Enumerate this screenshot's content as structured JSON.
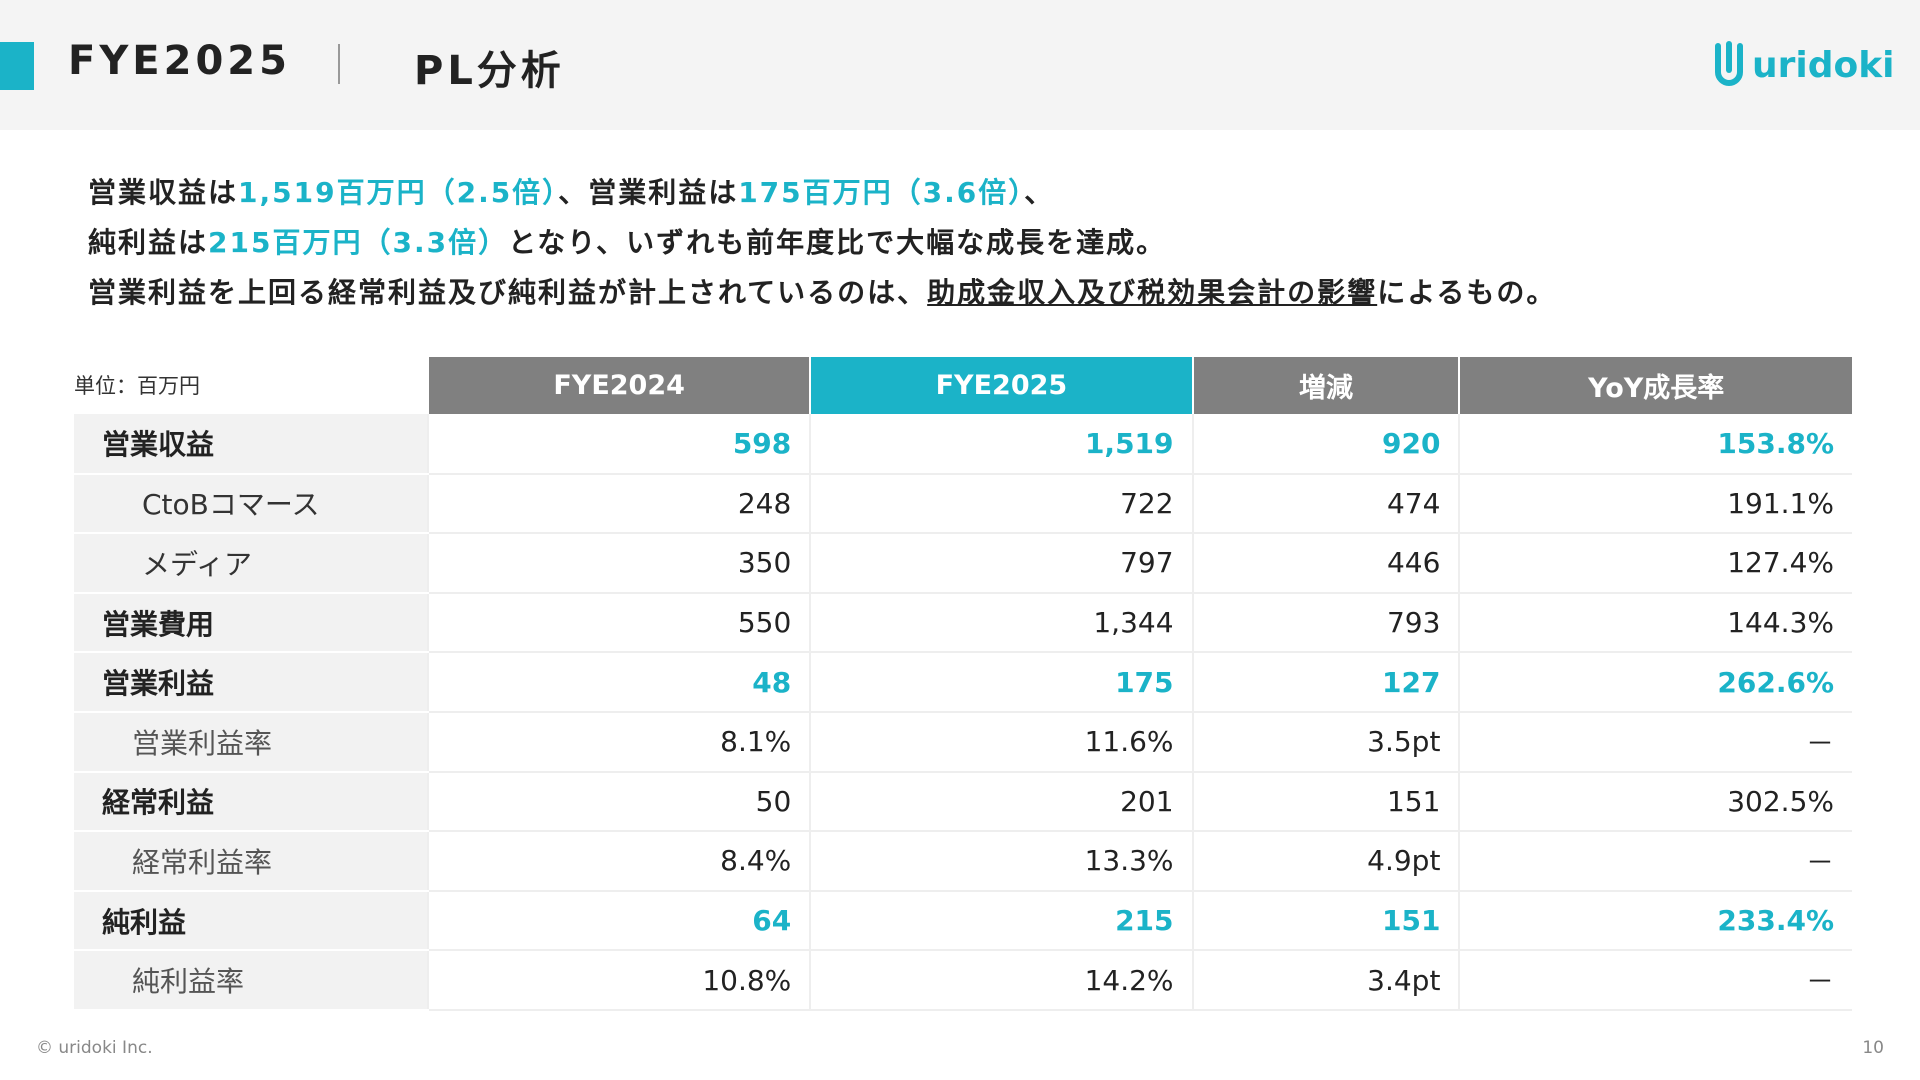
{
  "header": {
    "title": "FYE2025",
    "subtitle": "PL分析",
    "logo_text": "uridoki",
    "accent": "#1bb3c8"
  },
  "summary": {
    "l1": [
      "営業収益は",
      "1,519百万円（2.5倍）",
      "、営業利益は",
      "175百万円（3.6倍）",
      "、"
    ],
    "l2": [
      "純利益は",
      "215百万円（3.3倍）",
      "となり、いずれも前年度比で大幅な成長を達成。"
    ],
    "l3": [
      "営業利益を上回る経常利益及び純利益が計上されているのは、",
      "助成金収入及び税効果会計の影響",
      "によるもの。"
    ]
  },
  "table": {
    "unit": "単位：百万円",
    "columns": [
      "FYE2024",
      "FYE2025",
      "増減",
      "YoY成長率"
    ],
    "rows": [
      {
        "label": "営業収益",
        "values": [
          "598",
          "1,519",
          "920",
          "153.8%"
        ],
        "type": "main hlrow"
      },
      {
        "label": "CtoBコマース",
        "values": [
          "248",
          "722",
          "474",
          "191.1%"
        ],
        "type": "sub"
      },
      {
        "label": "メディア",
        "values": [
          "350",
          "797",
          "446",
          "127.4%"
        ],
        "type": "sub"
      },
      {
        "label": "営業費用",
        "values": [
          "550",
          "1,344",
          "793",
          "144.3%"
        ],
        "type": "main"
      },
      {
        "label": "営業利益",
        "values": [
          "48",
          "175",
          "127",
          "262.6%"
        ],
        "type": "main hlrow"
      },
      {
        "label": "営業利益率",
        "values": [
          "8.1%",
          "11.6%",
          "3.5pt",
          "－"
        ],
        "type": "ratio"
      },
      {
        "label": "経常利益",
        "values": [
          "50",
          "201",
          "151",
          "302.5%"
        ],
        "type": "main"
      },
      {
        "label": "経常利益率",
        "values": [
          "8.4%",
          "13.3%",
          "4.9pt",
          "－"
        ],
        "type": "ratio"
      },
      {
        "label": "純利益",
        "values": [
          "64",
          "215",
          "151",
          "233.4%"
        ],
        "type": "main hlrow"
      },
      {
        "label": "純利益率",
        "values": [
          "10.8%",
          "14.2%",
          "3.4pt",
          "－"
        ],
        "type": "ratio"
      }
    ]
  },
  "footer": {
    "copyright": "© uridoki Inc.",
    "page": "10"
  }
}
